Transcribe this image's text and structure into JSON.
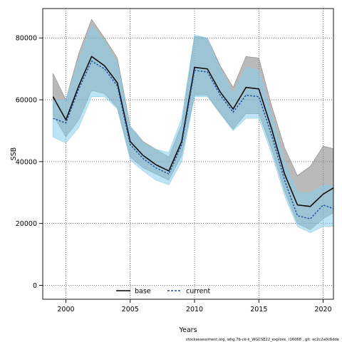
{
  "chart_data": {
    "type": "line",
    "title": "",
    "xlabel": "Years",
    "ylabel": "SSB",
    "xlim": [
      1998.2,
      2020.8
    ],
    "ylim": [
      -4500,
      89500
    ],
    "xticks": [
      2000,
      2005,
      2010,
      2015,
      2020
    ],
    "yticks": [
      0,
      20000,
      40000,
      60000,
      80000
    ],
    "grid": true,
    "legend_position": "bottom-center",
    "x": [
      1999,
      2000,
      2001,
      2002,
      2003,
      2004,
      2005,
      2006,
      2007,
      2008,
      2009,
      2010,
      2011,
      2012,
      2013,
      2014,
      2015,
      2016,
      2017,
      2018,
      2019,
      2020,
      2021
    ],
    "series": [
      {
        "name": "base",
        "color": "#000000",
        "band_color": "#7f7f7f",
        "values": [
          61000,
          53500,
          64500,
          74000,
          71000,
          65500,
          46500,
          42000,
          39000,
          37000,
          46500,
          70500,
          70000,
          62500,
          57000,
          64000,
          63500,
          50500,
          36000,
          26000,
          25500,
          29500,
          32000
        ],
        "lower": [
          55000,
          48000,
          53500,
          63000,
          62000,
          57500,
          41500,
          38000,
          36000,
          34000,
          42000,
          61500,
          61500,
          55500,
          50500,
          55500,
          55500,
          44000,
          30500,
          20000,
          18000,
          21500,
          24000
        ],
        "upper": [
          68500,
          60000,
          75000,
          86000,
          80000,
          73500,
          51500,
          46500,
          44000,
          41500,
          52000,
          80500,
          80000,
          71000,
          64000,
          74000,
          73500,
          58000,
          44500,
          35500,
          38500,
          45000,
          44000
        ]
      },
      {
        "name": "current",
        "color": "#1f4fa0",
        "band_color": "#87ceeb",
        "values": [
          54000,
          52500,
          63500,
          72500,
          70000,
          64500,
          45500,
          41000,
          38000,
          36000,
          45500,
          69500,
          69000,
          61500,
          56000,
          61500,
          61000,
          48500,
          34000,
          22500,
          21500,
          26000,
          24500
        ],
        "lower": [
          48000,
          46000,
          51000,
          61000,
          61000,
          57000,
          40500,
          37000,
          34000,
          32500,
          40000,
          61000,
          61000,
          55500,
          50000,
          54000,
          54000,
          42500,
          29000,
          19000,
          17000,
          19000,
          19000
        ],
        "upper": [
          60000,
          60000,
          73000,
          84000,
          79000,
          72000,
          51500,
          46000,
          44000,
          43000,
          54000,
          81000,
          80000,
          70000,
          62000,
          70500,
          69500,
          55000,
          40000,
          30000,
          30000,
          32500,
          32000
        ]
      }
    ],
    "footer": "stockassessment.org, whg.7b-ce-k_WGCSE22_explore, r16068 , git: ec2c2a0c6dde"
  }
}
